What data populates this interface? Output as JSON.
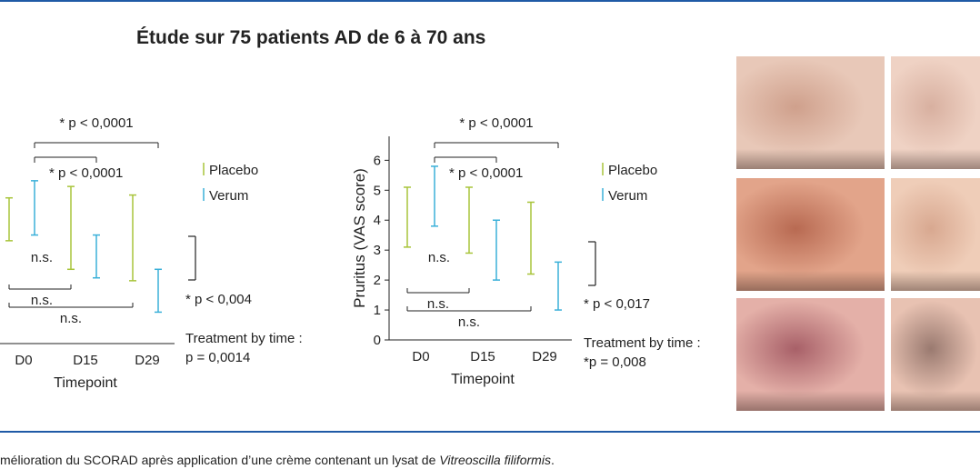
{
  "figure": {
    "title": "Étude sur 75 patients AD de 6 à 70 ans",
    "caption_text": "mélioration du SCORAD après application d’une crème contenant un lysat de ",
    "caption_italic": "Vitreoscilla filiformis",
    "caption_end": ".",
    "rule_color": "#1f5aa6"
  },
  "chart_data": [
    {
      "type": "errorbar",
      "title": "",
      "xlabel": "Timepoint",
      "ylabel": "",
      "categories": [
        "D0",
        "D15",
        "D29"
      ],
      "ylim": [
        0,
        7
      ],
      "yticks": [],
      "series": [
        {
          "name": "Placebo",
          "color": "#a8c43a",
          "low": [
            3.6,
            2.6,
            2.2
          ],
          "high": [
            5.1,
            5.5,
            5.2
          ]
        },
        {
          "name": "Verum",
          "color": "#3ab0d9",
          "low": [
            3.8,
            2.3,
            1.1
          ],
          "high": [
            5.7,
            3.8,
            2.6
          ]
        }
      ],
      "annotations": {
        "top_bracket": "* p < 0,0001",
        "inner_bracket": "* p < 0,0001",
        "ns_center": "n.s.",
        "ns_bottom_1": "n.s.",
        "ns_bottom_2": "n.s.",
        "right_bracket": "* p < 0,004",
        "treatment_line1": "Treatment by time :",
        "treatment_line2": "p = 0,0014"
      }
    },
    {
      "type": "errorbar",
      "title": "",
      "xlabel": "Timepoint",
      "ylabel": "Pruritus (VAS score)",
      "categories": [
        "D0",
        "D15",
        "D29"
      ],
      "ylim": [
        0,
        6.8
      ],
      "yticks": [
        0,
        1,
        2,
        3,
        4,
        5,
        6
      ],
      "series": [
        {
          "name": "Placebo",
          "color": "#a8c43a",
          "low": [
            3.1,
            2.9,
            2.2
          ],
          "high": [
            5.1,
            5.1,
            4.6
          ]
        },
        {
          "name": "Verum",
          "color": "#3ab0d9",
          "low": [
            3.8,
            2.0,
            1.0
          ],
          "high": [
            5.8,
            4.0,
            2.6
          ]
        }
      ],
      "annotations": {
        "top_bracket": "* p < 0,0001",
        "inner_bracket": "* p < 0,0001",
        "ns_center": "n.s.",
        "ns_bottom_1": "n.s.",
        "ns_bottom_2": "n.s.",
        "right_bracket": "* p < 0,017",
        "treatment_line1": "Treatment by time :",
        "treatment_line2": "*p = 0,008"
      }
    }
  ],
  "photos": [
    {
      "name": "photo-placebo-d0",
      "c1": "#e8c8b8",
      "c2": "#cfa08c"
    },
    {
      "name": "photo-verum-d0",
      "c1": "#efd2c4",
      "c2": "#d8b0a0"
    },
    {
      "name": "photo-placebo-d15",
      "c1": "#e2a48a",
      "c2": "#b86a52"
    },
    {
      "name": "photo-verum-d15",
      "c1": "#efcdb8",
      "c2": "#d8a890"
    },
    {
      "name": "photo-placebo-d29",
      "c1": "#e4b0a8",
      "c2": "#a86068"
    },
    {
      "name": "photo-verum-d29",
      "c1": "#e8c2b2",
      "c2": "#9a7a70"
    }
  ]
}
